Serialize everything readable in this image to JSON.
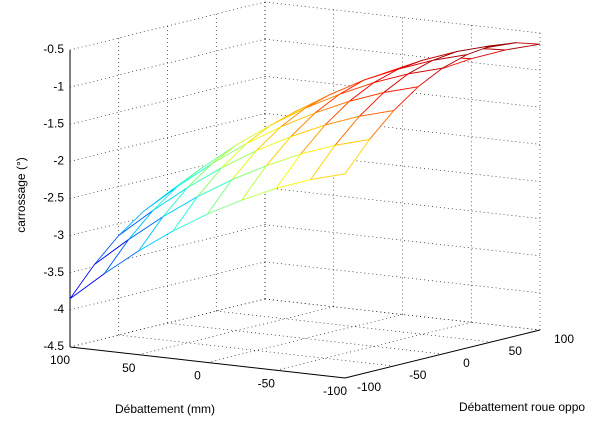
{
  "chart_data": {
    "type": "mesh",
    "xlabel": "Débattement (mm)",
    "ylabel": "Débattement roue oppo",
    "zlabel": "carrossage (°)",
    "x": [
      100,
      75,
      50,
      25,
      0,
      -25,
      -50,
      -75,
      -100
    ],
    "y": [
      -100,
      -75,
      -50,
      -25,
      0,
      25,
      50,
      75,
      100
    ],
    "z": [
      [
        -3.85,
        -3.47,
        -3.16,
        -2.92,
        -2.75,
        -2.65,
        -2.61,
        -2.65,
        -2.75
      ],
      [
        -3.46,
        -3.08,
        -2.77,
        -2.53,
        -2.36,
        -2.25,
        -2.22,
        -2.25,
        -2.36
      ],
      [
        -3.1,
        -2.72,
        -2.41,
        -2.17,
        -2.0,
        -1.9,
        -1.86,
        -1.9,
        -2.0
      ],
      [
        -2.78,
        -2.4,
        -2.09,
        -1.85,
        -1.68,
        -1.58,
        -1.54,
        -1.58,
        -1.68
      ],
      [
        -2.5,
        -2.12,
        -1.81,
        -1.57,
        -1.4,
        -1.3,
        -1.26,
        -1.3,
        -1.4
      ],
      [
        -2.26,
        -1.88,
        -1.57,
        -1.33,
        -1.16,
        -1.05,
        -1.02,
        -1.05,
        -1.16
      ],
      [
        -2.05,
        -1.67,
        -1.36,
        -1.12,
        -0.95,
        -0.85,
        -0.81,
        -0.85,
        -0.95
      ],
      [
        -1.88,
        -1.5,
        -1.19,
        -0.95,
        -0.78,
        -0.68,
        -0.64,
        -0.68,
        -0.78
      ],
      [
        -1.75,
        -1.37,
        -1.06,
        -0.82,
        -0.65,
        -0.55,
        -0.51,
        -0.55,
        -0.65
      ]
    ],
    "xlim": [
      100,
      -100
    ],
    "ylim": [
      -100,
      100
    ],
    "zlim": [
      -4.5,
      -0.5
    ],
    "xticks": [
      100,
      50,
      0,
      -50,
      -100
    ],
    "yticks": [
      -100,
      -50,
      0,
      50,
      100
    ],
    "zticks": [
      -0.5,
      -1,
      -1.5,
      -2,
      -2.5,
      -3,
      -3.5,
      -4,
      -4.5
    ],
    "grid": true,
    "colormap": "jet"
  }
}
